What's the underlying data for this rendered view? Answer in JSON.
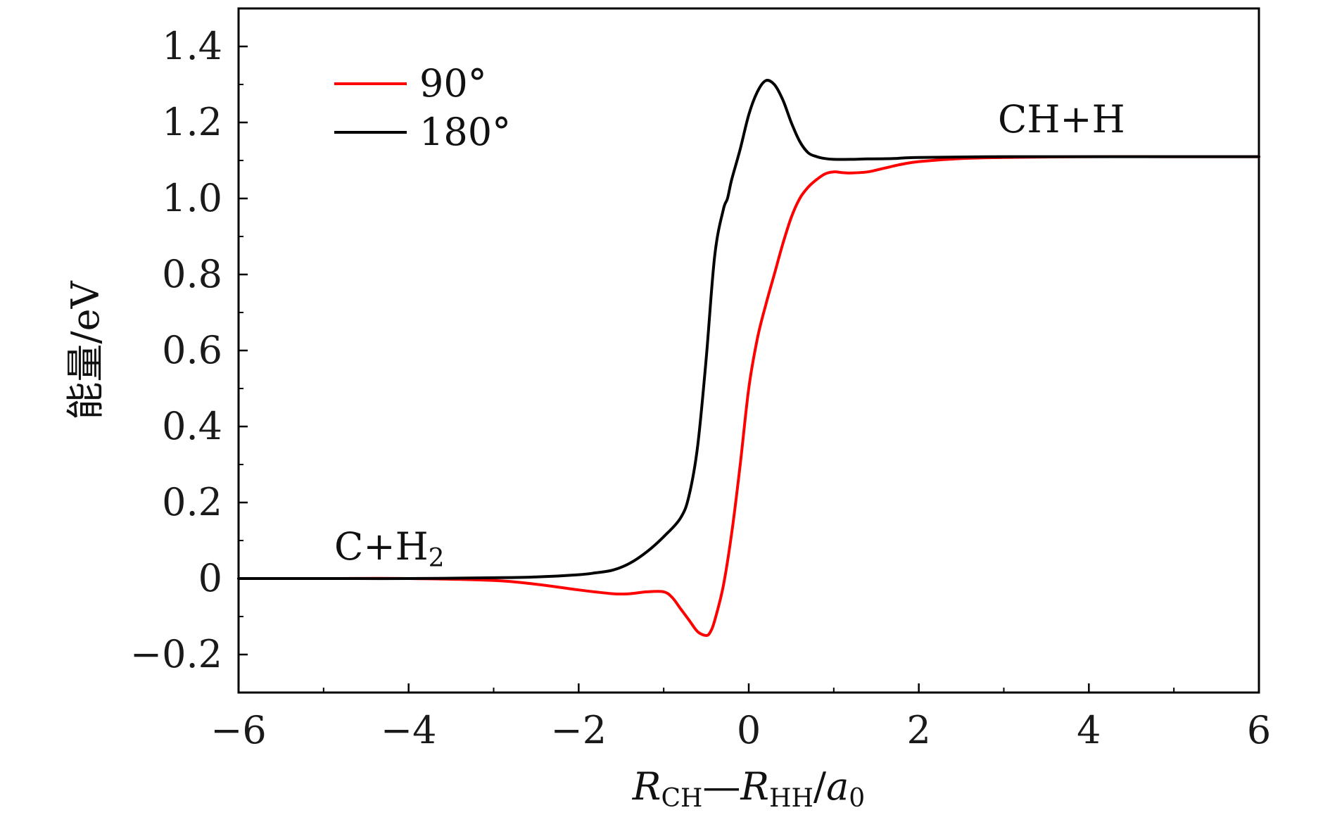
{
  "chart_data": {
    "type": "line",
    "xlabel_parts": {
      "r1": "R",
      "sub1": "CH",
      "dash": "—",
      "r2": "R",
      "sub2": "HH",
      "slash": "/",
      "a": "a",
      "sub3": "0"
    },
    "ylabel": "能量/eV",
    "xlim": [
      -6,
      6
    ],
    "ylim": [
      -0.3,
      1.5
    ],
    "xticks": [
      -6,
      -4,
      -2,
      0,
      2,
      4,
      6
    ],
    "xtick_labels": [
      "−6",
      "−4",
      "−2",
      "0",
      "2",
      "4",
      "6"
    ],
    "yticks": [
      -0.2,
      0,
      0.2,
      0.4,
      0.6,
      0.8,
      1.0,
      1.2,
      1.4
    ],
    "ytick_labels": [
      "−0.2",
      "0",
      "0.2",
      "0.4",
      "0.6",
      "0.8",
      "1.0",
      "1.2",
      "1.4"
    ],
    "grid": false,
    "legend_position": "top-left",
    "series": [
      {
        "name": "90°",
        "color": "#ff0000",
        "x": [
          -6,
          -5,
          -4,
          -3,
          -2.5,
          -2,
          -1.6,
          -1.4,
          -1.2,
          -1.0,
          -0.9,
          -0.8,
          -0.7,
          -0.6,
          -0.5,
          -0.45,
          -0.4,
          -0.3,
          -0.2,
          -0.1,
          0,
          0.1,
          0.2,
          0.3,
          0.4,
          0.5,
          0.6,
          0.7,
          0.8,
          0.9,
          1.0,
          1.1,
          1.2,
          1.4,
          1.6,
          1.8,
          2.0,
          2.5,
          3.0,
          4.0,
          5.0,
          6.0
        ],
        "y": [
          0.0,
          0.0,
          0.0,
          -0.005,
          -0.015,
          -0.03,
          -0.04,
          -0.04,
          -0.035,
          -0.035,
          -0.05,
          -0.08,
          -0.11,
          -0.14,
          -0.15,
          -0.14,
          -0.11,
          -0.02,
          0.12,
          0.3,
          0.5,
          0.63,
          0.72,
          0.8,
          0.88,
          0.95,
          1.0,
          1.03,
          1.05,
          1.065,
          1.07,
          1.068,
          1.067,
          1.07,
          1.08,
          1.09,
          1.097,
          1.105,
          1.108,
          1.11,
          1.11,
          1.11
        ]
      },
      {
        "name": "180°",
        "color": "#000000",
        "x": [
          -6,
          -5,
          -4,
          -3,
          -2.5,
          -2.0,
          -1.8,
          -1.6,
          -1.4,
          -1.2,
          -1.0,
          -0.8,
          -0.7,
          -0.6,
          -0.5,
          -0.4,
          -0.3,
          -0.25,
          -0.2,
          -0.1,
          0,
          0.1,
          0.2,
          0.3,
          0.4,
          0.5,
          0.6,
          0.7,
          0.8,
          0.9,
          1.0,
          1.2,
          1.4,
          1.7,
          2.0,
          3.0,
          4.0,
          5.0,
          6.0
        ],
        "y": [
          0.0,
          0.0,
          0.0,
          0.002,
          0.004,
          0.01,
          0.015,
          0.022,
          0.04,
          0.07,
          0.11,
          0.16,
          0.22,
          0.35,
          0.58,
          0.85,
          0.97,
          1.0,
          1.05,
          1.13,
          1.22,
          1.28,
          1.31,
          1.3,
          1.26,
          1.2,
          1.15,
          1.12,
          1.11,
          1.105,
          1.103,
          1.103,
          1.104,
          1.105,
          1.108,
          1.11,
          1.11,
          1.11,
          1.11
        ]
      }
    ],
    "annotations": [
      {
        "text": "C+H",
        "sub": "2",
        "x": -4.9,
        "y": 0.04
      },
      {
        "text": "CH+H",
        "sub": "",
        "x": 3.0,
        "y": 1.2
      }
    ]
  }
}
